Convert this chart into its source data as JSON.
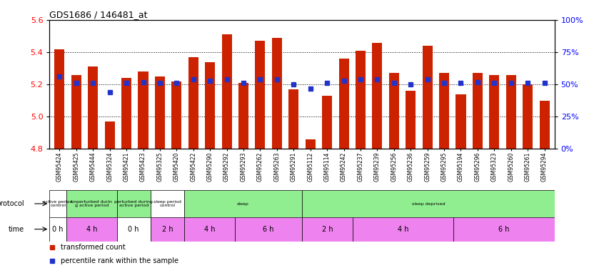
{
  "title": "GDS1686 / 146481_at",
  "samples": [
    "GSM95424",
    "GSM95425",
    "GSM95444",
    "GSM95324",
    "GSM95421",
    "GSM95423",
    "GSM95325",
    "GSM95420",
    "GSM95422",
    "GSM95290",
    "GSM95292",
    "GSM95293",
    "GSM95262",
    "GSM95263",
    "GSM95291",
    "GSM95112",
    "GSM95114",
    "GSM95242",
    "GSM95237",
    "GSM95239",
    "GSM95256",
    "GSM95236",
    "GSM95259",
    "GSM95295",
    "GSM95194",
    "GSM95296",
    "GSM95323",
    "GSM95260",
    "GSM95261",
    "GSM95294"
  ],
  "red_values": [
    5.42,
    5.26,
    5.31,
    4.97,
    5.24,
    5.28,
    5.25,
    5.22,
    5.37,
    5.34,
    5.51,
    5.21,
    5.47,
    5.49,
    5.17,
    4.86,
    5.13,
    5.36,
    5.41,
    5.46,
    5.27,
    5.16,
    5.44,
    5.27,
    5.14,
    5.27,
    5.26,
    5.26,
    5.2,
    5.1
  ],
  "blue_values": [
    56,
    51,
    51,
    44,
    51,
    52,
    51,
    51,
    54,
    53,
    54,
    51,
    54,
    54,
    50,
    47,
    51,
    53,
    54,
    54,
    51,
    50,
    54,
    51,
    51,
    52,
    51,
    51,
    51,
    51
  ],
  "ylim_left": [
    4.8,
    5.6
  ],
  "ylim_right": [
    0,
    100
  ],
  "yticks_left": [
    4.8,
    5.0,
    5.2,
    5.4,
    5.6
  ],
  "yticks_right": [
    0,
    25,
    50,
    75,
    100
  ],
  "ytick_labels_right": [
    "0%",
    "25%",
    "50%",
    "75%",
    "100%"
  ],
  "protocol_groups": [
    {
      "label": "active period\ncontrol",
      "start": 0,
      "end": 1,
      "color": "#ffffff"
    },
    {
      "label": "unperturbed durin\ng active period",
      "start": 1,
      "end": 4,
      "color": "#90ee90"
    },
    {
      "label": "perturbed during\nactive period",
      "start": 4,
      "end": 6,
      "color": "#90ee90"
    },
    {
      "label": "sleep period\ncontrol",
      "start": 6,
      "end": 8,
      "color": "#ffffff"
    },
    {
      "label": "sleep",
      "start": 8,
      "end": 15,
      "color": "#90ee90"
    },
    {
      "label": "sleep deprived",
      "start": 15,
      "end": 30,
      "color": "#90ee90"
    }
  ],
  "time_groups": [
    {
      "label": "0 h",
      "start": 0,
      "end": 1,
      "color": "#ffffff"
    },
    {
      "label": "4 h",
      "start": 1,
      "end": 4,
      "color": "#ee82ee"
    },
    {
      "label": "0 h",
      "start": 4,
      "end": 6,
      "color": "#ffffff"
    },
    {
      "label": "2 h",
      "start": 6,
      "end": 8,
      "color": "#ee82ee"
    },
    {
      "label": "4 h",
      "start": 8,
      "end": 11,
      "color": "#ee82ee"
    },
    {
      "label": "6 h",
      "start": 11,
      "end": 15,
      "color": "#ee82ee"
    },
    {
      "label": "2 h",
      "start": 15,
      "end": 18,
      "color": "#ee82ee"
    },
    {
      "label": "4 h",
      "start": 18,
      "end": 24,
      "color": "#ee82ee"
    },
    {
      "label": "6 h",
      "start": 24,
      "end": 30,
      "color": "#ee82ee"
    }
  ],
  "bar_color": "#cc2200",
  "dot_color": "#2233cc",
  "base_value": 4.8,
  "bar_width": 0.6,
  "dot_size": 5
}
